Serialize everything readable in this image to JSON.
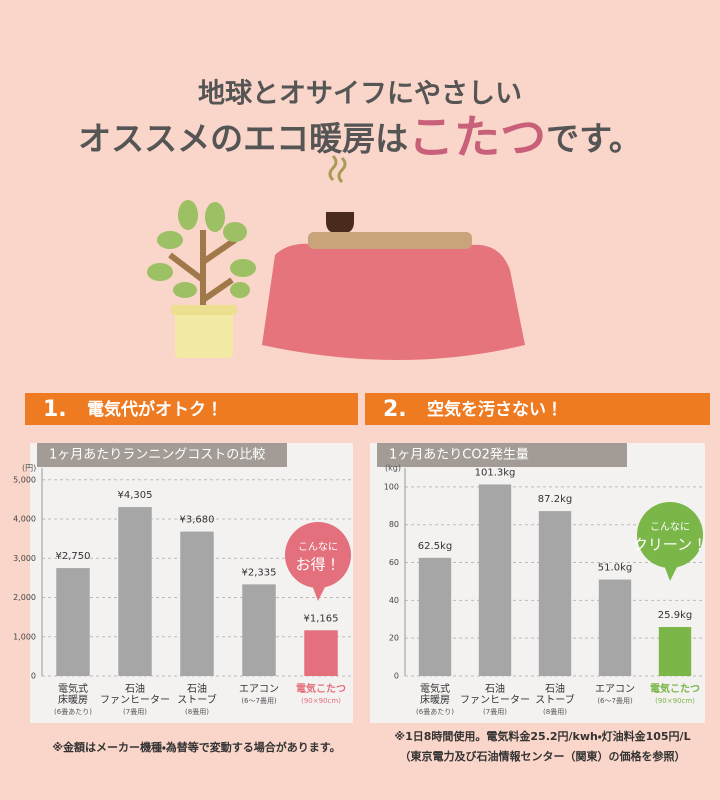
{
  "header": {
    "line1": "地球とオサイフにやさしい",
    "line2_a": "オススメのエコ暖房は",
    "line2_highlight": "こたつ",
    "line2_b": "です。"
  },
  "chart_data": [
    {
      "type": "bar",
      "number": "1.",
      "heading": "電気代がオトク！",
      "title": "1ヶ月あたりランニングコストの比較",
      "y_unit": "(円)",
      "categories": [
        [
          "電気式",
          "床暖房"
        ],
        [
          "石油",
          "ファンヒーター"
        ],
        [
          "石油",
          "ストーブ"
        ],
        [
          "エアコン"
        ],
        [
          "電気こたつ"
        ]
      ],
      "category_notes": [
        "(6畳あたり)",
        "(7畳用)",
        "(8畳用)",
        "(6～7畳用)",
        "(90×90cm)"
      ],
      "values": [
        2750,
        4305,
        3680,
        2335,
        1165
      ],
      "value_labels": [
        "¥2,750",
        "¥4,305",
        "¥3,680",
        "¥2,335",
        "¥1,165"
      ],
      "colors": [
        "#a6a6a6",
        "#a6a6a6",
        "#a6a6a6",
        "#a6a6a6",
        "#e3707c"
      ],
      "ylim": [
        0,
        5300
      ],
      "yticks": [
        0,
        {
          "value": 1000,
          "label": "1,000"
        },
        {
          "value": 2000,
          "label": "2,000"
        },
        {
          "value": 3000,
          "label": "3,000"
        },
        {
          "value": 4000,
          "label": "4,000"
        },
        {
          "value": 5000,
          "label": "5,000"
        }
      ],
      "grid": true,
      "callout": [
        "こんなに",
        "お得！"
      ],
      "callout_color": "#e3707c",
      "notes": [
        "※金額はメーカー機種・為替等で変動する場合があります。"
      ]
    },
    {
      "type": "bar",
      "number": "2.",
      "heading": "空気を汚さない！",
      "title": "1ヶ月あたりCO2発生量",
      "y_unit": "(kg)",
      "categories": [
        [
          "電気式",
          "床暖房"
        ],
        [
          "石油",
          "ファンヒーター"
        ],
        [
          "石油",
          "ストーブ"
        ],
        [
          "エアコン"
        ],
        [
          "電気こたつ"
        ]
      ],
      "category_notes": [
        "(6畳あたり)",
        "(7畳用)",
        "(8畳用)",
        "(6～7畳用)",
        "(90×90cm)"
      ],
      "values": [
        62.5,
        101.3,
        87.2,
        51.0,
        25.9
      ],
      "value_labels": [
        "62.5kg",
        "101.3kg",
        "87.2kg",
        "51.0kg",
        "25.9kg"
      ],
      "colors": [
        "#a6a6a6",
        "#a6a6a6",
        "#a6a6a6",
        "#a6a6a6",
        "#7ab648"
      ],
      "ylim": [
        0,
        110
      ],
      "yticks": [
        0,
        20,
        40,
        60,
        80,
        100
      ],
      "grid": true,
      "callout": [
        "こんなに",
        "クリーン！"
      ],
      "callout_color": "#7ab648",
      "notes": [
        "※1日8時間使用。電気料金25.2円/kwh・灯油料金105円/L",
        "（東京電力及び石油情報センター（関東）の価格を参照）"
      ]
    }
  ]
}
